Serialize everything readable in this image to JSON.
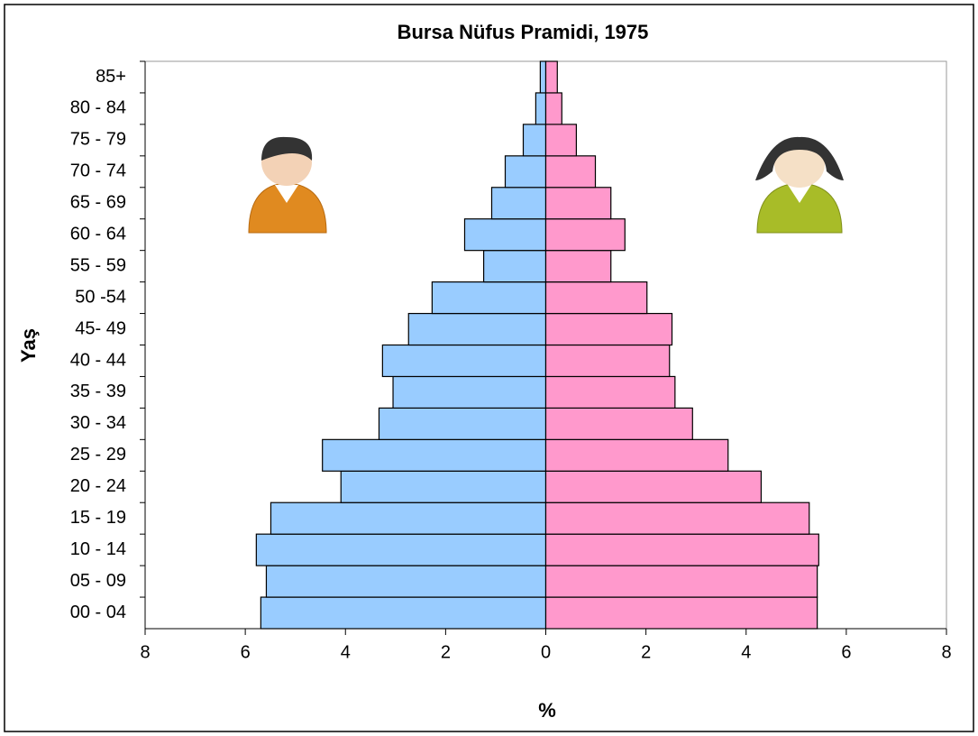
{
  "chart_data": {
    "type": "pyramid",
    "title": "Bursa Nüfus Pramidi, 1975",
    "x_label": "%",
    "y_label": "Yaş",
    "categories": [
      "00 - 04",
      "05 - 09",
      "10 - 14",
      "15 - 19",
      "20 - 24",
      "25 - 29",
      "30 - 34",
      "35 - 39",
      "40 - 44",
      "45- 49",
      "50 -54",
      "55 - 59",
      "60 - 64",
      "65 - 69",
      "70 - 74",
      "75 - 79",
      "80 - 84",
      "85+"
    ],
    "series": [
      {
        "color": "#99ccff",
        "values": [
          -5.69,
          -5.58,
          -5.78,
          -5.49,
          -4.09,
          -4.46,
          -3.33,
          -3.05,
          -3.26,
          -2.74,
          -2.27,
          -1.24,
          -1.62,
          -1.08,
          -0.81,
          -0.45,
          -0.2,
          -0.11
        ]
      },
      {
        "color": "#ff99cc",
        "values": [
          5.42,
          5.42,
          5.45,
          5.26,
          4.3,
          3.64,
          2.93,
          2.58,
          2.47,
          2.52,
          2.02,
          1.3,
          1.58,
          1.3,
          0.99,
          0.61,
          0.32,
          0.23
        ]
      }
    ],
    "xlim": [
      -8,
      8
    ],
    "xticks": [
      {
        "value": -8,
        "label": "8"
      },
      {
        "value": -6,
        "label": "6"
      },
      {
        "value": -4,
        "label": "4"
      },
      {
        "value": -2,
        "label": "2"
      },
      0,
      2,
      4,
      6,
      8
    ]
  }
}
